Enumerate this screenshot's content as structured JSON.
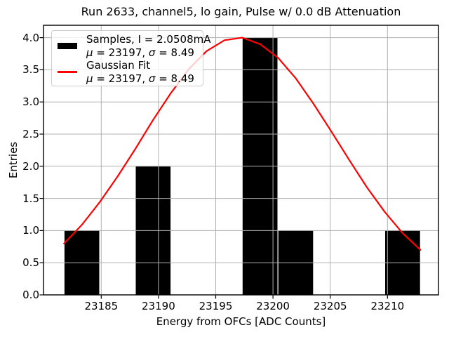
{
  "title": "Run 2633, channel5, lo gain, Pulse w/ 0.0 dB Attenuation",
  "axes": {
    "x_label": "Energy from OFCs [ADC Counts]",
    "y_label": "Entries",
    "x_tick_labels": [
      "23185",
      "23190",
      "23195",
      "23200",
      "23205",
      "23210"
    ],
    "y_tick_labels": [
      "0.0",
      "0.5",
      "1.0",
      "1.5",
      "2.0",
      "2.5",
      "3.0",
      "3.5",
      "4.0"
    ]
  },
  "legend": {
    "entries": [
      {
        "swatch": "black-patch",
        "label": "Samples, I = 2.0508mA",
        "stats": [
          "μ",
          " = 23197, ",
          "σ",
          " = 8.49"
        ]
      },
      {
        "swatch": "red-line",
        "label": "Gaussian Fit",
        "stats": [
          "μ",
          " = 23197, ",
          "σ",
          " = 8.49"
        ]
      }
    ]
  },
  "colors": {
    "bar": "#000000",
    "fit_line": "#ff0000",
    "grid": "#b0b0b0",
    "spine": "#000000",
    "background": "#ffffff"
  },
  "chart_data": {
    "type": "histogram+line",
    "title": "Run 2633, channel5, lo gain, Pulse w/ 0.0 dB Attenuation",
    "xlabel": "Energy from OFCs [ADC Counts]",
    "ylabel": "Entries",
    "xlim": [
      23180.0,
      23214.5
    ],
    "ylim": [
      0,
      4.19
    ],
    "grid": true,
    "legend_position": "upper left",
    "x_ticks": [
      23185,
      23190,
      23195,
      23200,
      23205,
      23210
    ],
    "y_ticks": [
      0,
      0.5,
      1,
      1.5,
      2,
      2.5,
      3,
      3.5,
      4
    ],
    "histogram": {
      "series_name": "Samples, I = 2.0508mA",
      "n_entries": 9,
      "mu": 23197,
      "sigma": 8.49,
      "bin_edges": [
        23181.75,
        23184.86,
        23187.98,
        23191.09,
        23194.2,
        23197.31,
        23200.43,
        23203.54,
        23206.65,
        23209.76,
        23212.88
      ],
      "counts": [
        1,
        0,
        2,
        0,
        0,
        4,
        1,
        0,
        0,
        1
      ]
    },
    "gaussian_fit": {
      "series_name": "Gaussian Fit",
      "mu": 23197,
      "sigma": 8.49,
      "amplitude": 4.0,
      "x": [
        23181.75,
        23183.31,
        23184.86,
        23186.42,
        23187.98,
        23189.53,
        23191.09,
        23192.64,
        23194.2,
        23195.76,
        23197.31,
        23198.87,
        23200.43,
        23201.98,
        23203.54,
        23205.1,
        23206.65,
        23208.21,
        23209.76,
        23211.32,
        23212.88
      ],
      "y": [
        0.8,
        1.09,
        1.44,
        1.84,
        2.27,
        2.72,
        3.14,
        3.51,
        3.79,
        3.96,
        4.0,
        3.9,
        3.69,
        3.37,
        2.97,
        2.54,
        2.1,
        1.67,
        1.29,
        0.96,
        0.7
      ]
    }
  }
}
